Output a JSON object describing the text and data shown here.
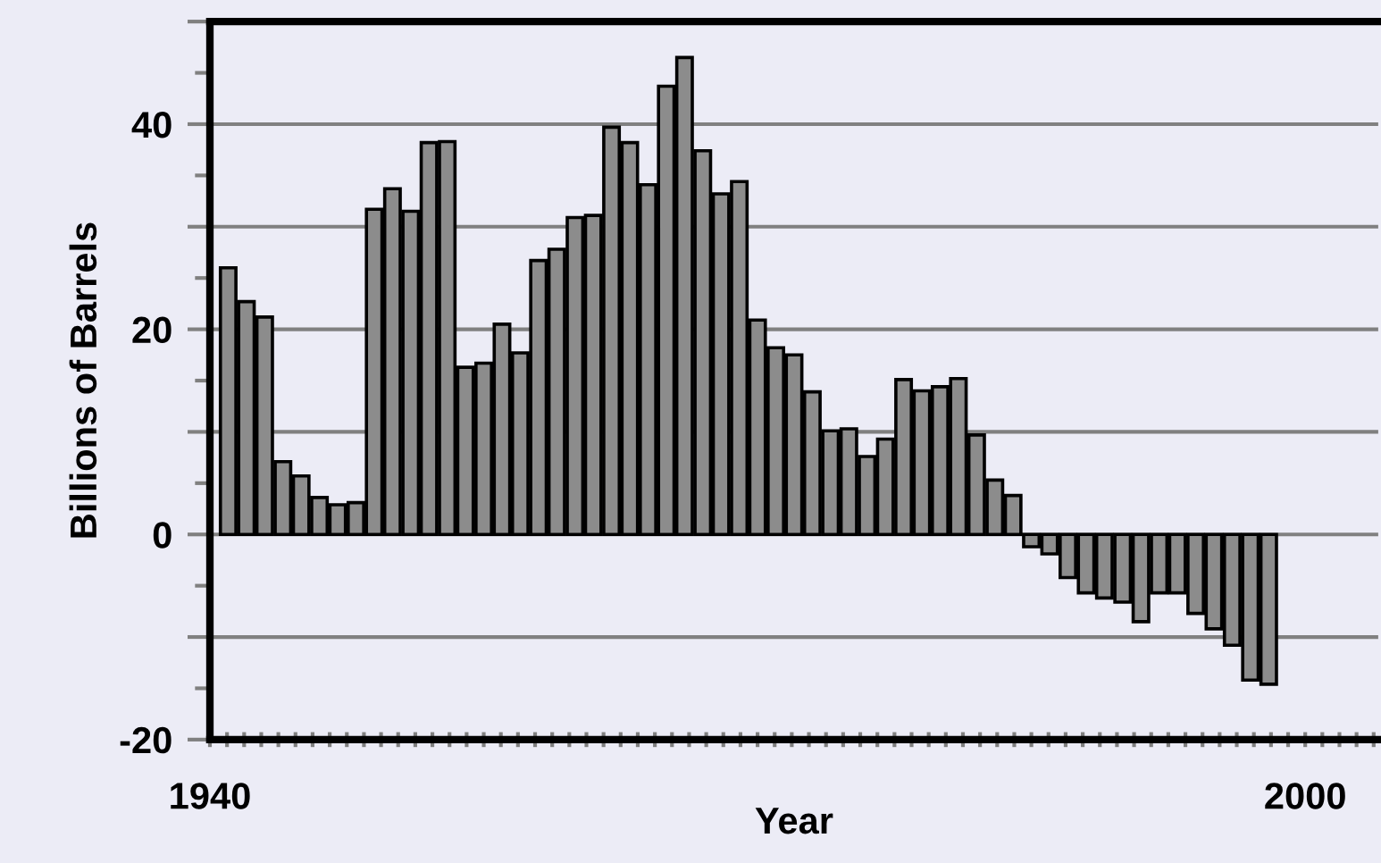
{
  "chart_data": {
    "type": "bar",
    "xlabel": "Year",
    "ylabel": "Billions of Barrels",
    "x": [
      1941,
      1942,
      1943,
      1944,
      1945,
      1946,
      1947,
      1948,
      1949,
      1950,
      1951,
      1952,
      1953,
      1954,
      1955,
      1956,
      1957,
      1958,
      1959,
      1960,
      1961,
      1962,
      1963,
      1964,
      1965,
      1966,
      1967,
      1968,
      1969,
      1970,
      1971,
      1972,
      1973,
      1974,
      1975,
      1976,
      1977,
      1978,
      1979,
      1980,
      1981,
      1982,
      1983,
      1984,
      1985,
      1986,
      1987,
      1988,
      1989,
      1990,
      1991,
      1992,
      1993,
      1994,
      1995,
      1996,
      1997,
      1998
    ],
    "values": [
      26.0,
      22.7,
      21.2,
      7.1,
      5.7,
      3.6,
      2.9,
      3.1,
      31.7,
      33.7,
      31.5,
      38.2,
      38.3,
      16.3,
      16.7,
      20.5,
      17.7,
      26.7,
      27.8,
      30.9,
      31.1,
      39.7,
      38.2,
      34.1,
      43.7,
      46.5,
      37.4,
      33.2,
      34.4,
      20.9,
      18.2,
      17.5,
      13.9,
      10.1,
      10.3,
      7.6,
      9.3,
      15.1,
      14.0,
      14.4,
      15.2,
      9.7,
      5.3,
      3.8,
      -1.2,
      -1.9,
      -4.2,
      -5.7,
      -6.2,
      -6.6,
      -8.5,
      -5.7,
      -5.7,
      -7.7,
      -9.2,
      -10.8,
      -14.2,
      -14.6
    ],
    "color": "#8c8c8c",
    "xlim": [
      1940,
      2004
    ],
    "xticks": [
      1940,
      2000
    ],
    "ylim": [
      -20,
      50
    ],
    "yticks": [
      -20,
      {
        "value": -10,
        "label": null
      },
      0,
      {
        "value": 10,
        "label": null
      },
      20,
      {
        "value": 30,
        "label": null
      },
      40,
      {
        "value": 50,
        "label": null
      }
    ],
    "grid": "y"
  }
}
